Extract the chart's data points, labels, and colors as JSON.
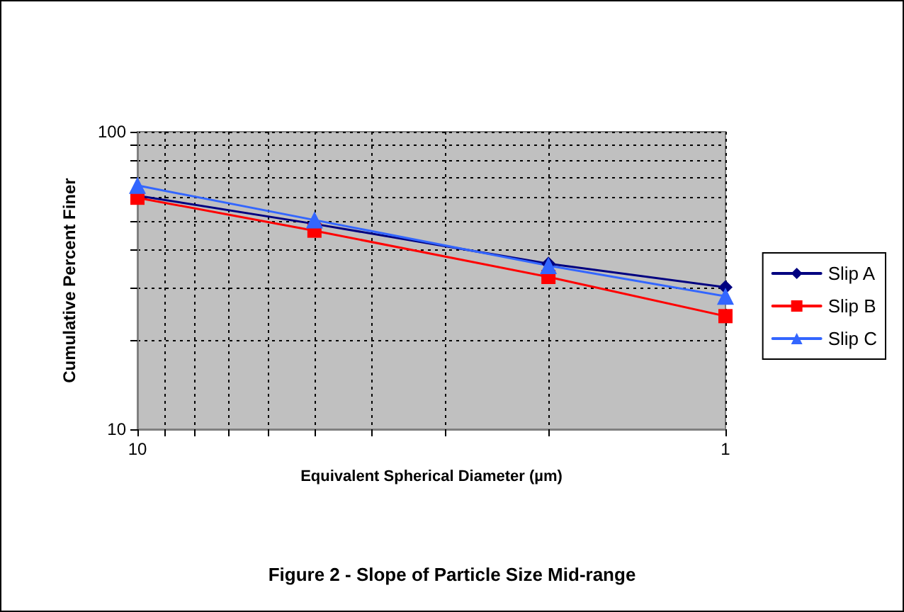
{
  "chart_data": {
    "type": "line",
    "title": "Figure 2 - Slope of Particle Size Mid-range",
    "xlabel": "Equivalent Spherical Diameter (µm)",
    "ylabel": "Cumulative Percent Finer",
    "x": [
      10,
      5,
      2,
      1
    ],
    "series": [
      {
        "name": "Slip A",
        "color": "#000080",
        "marker": "diamond",
        "values": [
          61,
          49,
          36,
          30
        ]
      },
      {
        "name": "Slip B",
        "color": "#ff0000",
        "marker": "square",
        "values": [
          60,
          46.5,
          32.5,
          24
        ]
      },
      {
        "name": "Slip C",
        "color": "#3366ff",
        "marker": "triangle",
        "values": [
          66,
          50.5,
          35.5,
          28
        ]
      }
    ],
    "log": "xy",
    "xlim": [
      10,
      1
    ],
    "ylim": [
      10,
      100
    ],
    "xticks": [
      10,
      {
        "value": 9,
        "label": null
      },
      {
        "value": 8,
        "label": null
      },
      {
        "value": 7,
        "label": null
      },
      {
        "value": 6,
        "label": null
      },
      {
        "value": 5,
        "label": null
      },
      {
        "value": 4,
        "label": null
      },
      {
        "value": 3,
        "label": null
      },
      {
        "value": 2,
        "label": null
      },
      1
    ],
    "yticks": [
      10,
      {
        "value": 20,
        "label": null
      },
      {
        "value": 30,
        "label": null
      },
      {
        "value": 40,
        "label": null
      },
      {
        "value": 50,
        "label": null
      },
      {
        "value": 60,
        "label": null
      },
      {
        "value": 70,
        "label": null
      },
      {
        "value": 80,
        "label": null
      },
      {
        "value": 90,
        "label": null
      },
      100
    ],
    "grid": true,
    "legend": "right",
    "line_style": "solid"
  }
}
